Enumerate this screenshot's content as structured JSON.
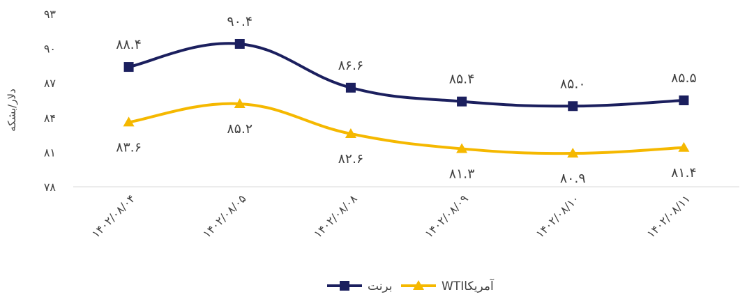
{
  "chart_data": {
    "type": "line",
    "title": "",
    "xlabel": "",
    "ylabel": "دلار/بشکه",
    "ylim": [
      78,
      93
    ],
    "yticks": [
      "۷۸",
      "۸۱",
      "۸۴",
      "۸۷",
      "۹۰",
      "۹۳"
    ],
    "ytick_values": [
      78,
      81,
      84,
      87,
      90,
      93
    ],
    "categories": [
      "۱۴۰۲/۰۸/۰۴",
      "۱۴۰۲/۰۸/۰۵",
      "۱۴۰۲/۰۸/۰۸",
      "۱۴۰۲/۰۸/۰۹",
      "۱۴۰۲/۰۸/۱۰",
      "۱۴۰۲/۰۸/۱۱"
    ],
    "grid": false,
    "legend_position": "bottom",
    "series": [
      {
        "name": "برنت",
        "values": [
          88.4,
          90.4,
          86.6,
          85.4,
          85.0,
          85.5
        ],
        "labels": [
          "۸۸.۴",
          "۹۰.۴",
          "۸۶.۶",
          "۸۵.۴",
          "۸۵.۰",
          "۸۵.۵"
        ],
        "label_position": "above",
        "color": "#1b1f5e",
        "marker": "square"
      },
      {
        "name": "WTIآمریکا",
        "values": [
          83.6,
          85.2,
          82.6,
          81.3,
          80.9,
          81.4
        ],
        "labels": [
          "۸۳.۶",
          "۸۵.۲",
          "۸۲.۶",
          "۸۱.۳",
          "۸۰.۹",
          "۸۱.۴"
        ],
        "label_position": "below",
        "color": "#f5b800",
        "marker": "triangle"
      }
    ]
  }
}
